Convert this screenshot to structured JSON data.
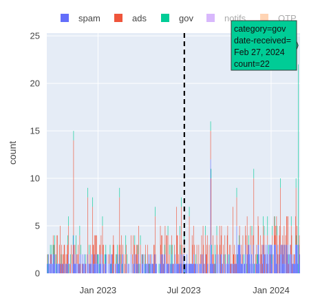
{
  "chart_data": {
    "type": "bar",
    "barmode": "stack",
    "title": "",
    "xlabel": "",
    "ylabel": "count",
    "x_range": [
      "2022-09-15",
      "2024-03-02"
    ],
    "ylim": [
      0,
      25.3
    ],
    "y_ticks": [
      0,
      5,
      10,
      15,
      20,
      25
    ],
    "x_ticks": [
      {
        "date": "2023-01-01",
        "label": "Jan 2023"
      },
      {
        "date": "2023-07-01",
        "label": "Jul 2023"
      },
      {
        "date": "2024-01-01",
        "label": "Jan 2024"
      }
    ],
    "grid": true,
    "legend_position": "top",
    "series": [
      {
        "name": "spam",
        "color": "#636efa",
        "visible": true
      },
      {
        "name": "ads",
        "color": "#ef553b",
        "visible": true
      },
      {
        "name": "gov",
        "color": "#00cc96",
        "visible": true
      },
      {
        "name": "notifs",
        "color": "#ab63fa",
        "visible": false
      },
      {
        "name": "OTP",
        "color": "#ffa15a",
        "visible": false
      }
    ],
    "daily_totals_sample": [
      {
        "date": "2022-11-10",
        "series": "ads",
        "total": 15
      },
      {
        "date": "2022-12-10",
        "series": "ads",
        "total": 9
      },
      {
        "date": "2022-12-20",
        "series": "ads",
        "total": 8
      },
      {
        "date": "2023-02-15",
        "series": "ads",
        "total": 9
      },
      {
        "date": "2023-05-01",
        "series": "ads",
        "total": 7
      },
      {
        "date": "2023-06-25",
        "series": "ads",
        "total": 8
      },
      {
        "date": "2023-08-26",
        "series": "spam",
        "total": 16
      },
      {
        "date": "2023-08-27",
        "series": "ads",
        "total": 11
      },
      {
        "date": "2023-10-20",
        "series": "spam",
        "total": 9
      },
      {
        "date": "2023-11-25",
        "series": "ads",
        "total": 11
      },
      {
        "date": "2024-01-20",
        "series": "ads",
        "total": 10
      },
      {
        "date": "2024-02-27",
        "series": "gov",
        "total": 22
      }
    ],
    "vline": {
      "date": "2023-07-02",
      "style": "dashed",
      "color": "#000000"
    },
    "hover": {
      "lines": [
        "category=gov",
        "date-received=",
        "Feb 27, 2024",
        "count=22"
      ]
    }
  }
}
